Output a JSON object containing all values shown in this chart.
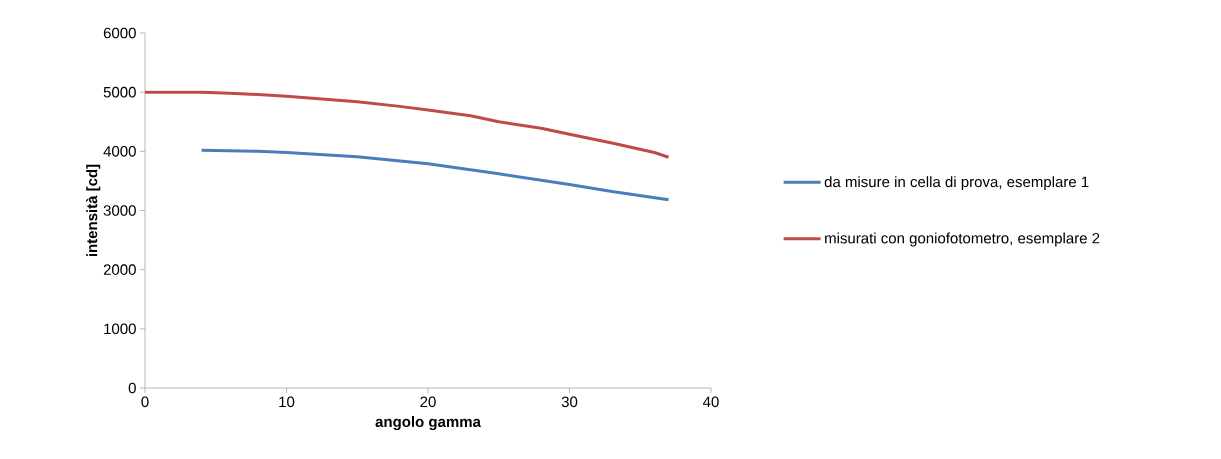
{
  "chart_data": {
    "type": "line",
    "xlabel": "angolo gamma",
    "ylabel": "intensità [cd]",
    "xlim": [
      0,
      40
    ],
    "xticks": [
      0,
      10,
      20,
      30,
      40
    ],
    "ylim": [
      0,
      6000
    ],
    "yticks": [
      0,
      1000,
      2000,
      3000,
      4000,
      5000,
      6000
    ],
    "legend": "right",
    "grid": false,
    "marker": "none",
    "line_style": "solid",
    "series": [
      {
        "name": "da misure in cella di prova, esemplare 1",
        "color": "#4a7ebb",
        "x": [
          4,
          8,
          10,
          15,
          20,
          25,
          30,
          33,
          37
        ],
        "values": [
          4020,
          4000,
          3980,
          3910,
          3790,
          3620,
          3440,
          3320,
          3180
        ]
      },
      {
        "name": "misurati con goniofotometro, esemplare 2",
        "color": "#be4b48",
        "x": [
          0,
          4,
          6,
          8,
          10,
          15,
          18,
          20,
          23,
          25,
          28,
          30,
          33,
          36,
          37
        ],
        "values": [
          5000,
          5000,
          4980,
          4960,
          4930,
          4840,
          4760,
          4700,
          4600,
          4500,
          4390,
          4290,
          4140,
          3980,
          3900
        ]
      }
    ]
  }
}
